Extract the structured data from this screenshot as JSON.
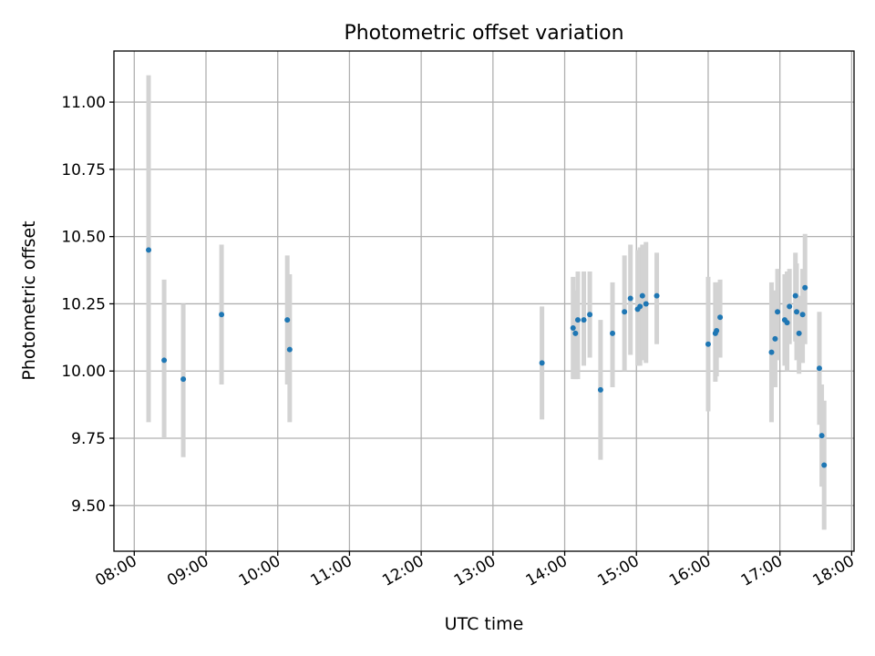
{
  "chart_data": {
    "type": "scatter",
    "title": "Photometric offset variation",
    "xlabel": "UTC time",
    "ylabel": "Photometric offset",
    "x_tick_labels": [
      "08:00",
      "09:00",
      "10:00",
      "11:00",
      "12:00",
      "13:00",
      "14:00",
      "15:00",
      "16:00",
      "17:00",
      "18:00"
    ],
    "y_tick_labels": [
      "9.50",
      "9.75",
      "10.00",
      "10.25",
      "10.50",
      "10.75",
      "11.00"
    ],
    "y_ticks": [
      9.5,
      9.75,
      10.0,
      10.25,
      10.5,
      10.75,
      11.0
    ],
    "x_range": [
      "07:43",
      "18:02"
    ],
    "ylim": [
      9.33,
      11.19
    ],
    "grid": true,
    "marker_color": "#1f77b4",
    "errorbar_color": "#d3d3d3",
    "points": [
      {
        "time": "08:12",
        "y": 10.45,
        "lo": 9.81,
        "hi": 11.1
      },
      {
        "time": "08:25",
        "y": 10.04,
        "lo": 9.75,
        "hi": 10.34
      },
      {
        "time": "08:41",
        "y": 9.97,
        "lo": 9.68,
        "hi": 10.25
      },
      {
        "time": "09:13",
        "y": 10.21,
        "lo": 9.95,
        "hi": 10.47
      },
      {
        "time": "10:08",
        "y": 10.19,
        "lo": 9.95,
        "hi": 10.43
      },
      {
        "time": "10:10",
        "y": 10.08,
        "lo": 9.81,
        "hi": 10.36
      },
      {
        "time": "13:41",
        "y": 10.03,
        "lo": 9.82,
        "hi": 10.24
      },
      {
        "time": "14:07",
        "y": 10.16,
        "lo": 9.97,
        "hi": 10.35
      },
      {
        "time": "14:09",
        "y": 10.14,
        "lo": 9.97,
        "hi": 10.3
      },
      {
        "time": "14:11",
        "y": 10.19,
        "lo": 9.97,
        "hi": 10.37
      },
      {
        "time": "14:16",
        "y": 10.19,
        "lo": 10.02,
        "hi": 10.37
      },
      {
        "time": "14:21",
        "y": 10.21,
        "lo": 10.05,
        "hi": 10.37
      },
      {
        "time": "14:30",
        "y": 9.93,
        "lo": 9.67,
        "hi": 10.19
      },
      {
        "time": "14:40",
        "y": 10.14,
        "lo": 9.94,
        "hi": 10.33
      },
      {
        "time": "14:50",
        "y": 10.22,
        "lo": 10.0,
        "hi": 10.43
      },
      {
        "time": "14:55",
        "y": 10.27,
        "lo": 10.06,
        "hi": 10.47
      },
      {
        "time": "15:01",
        "y": 10.23,
        "lo": 10.02,
        "hi": 10.45
      },
      {
        "time": "15:03",
        "y": 10.24,
        "lo": 10.02,
        "hi": 10.46
      },
      {
        "time": "15:05",
        "y": 10.28,
        "lo": 10.04,
        "hi": 10.47
      },
      {
        "time": "15:08",
        "y": 10.25,
        "lo": 10.03,
        "hi": 10.48
      },
      {
        "time": "15:17",
        "y": 10.28,
        "lo": 10.1,
        "hi": 10.44
      },
      {
        "time": "16:00",
        "y": 10.1,
        "lo": 9.85,
        "hi": 10.35
      },
      {
        "time": "16:06",
        "y": 10.14,
        "lo": 9.96,
        "hi": 10.33
      },
      {
        "time": "16:07",
        "y": 10.15,
        "lo": 9.98,
        "hi": 10.33
      },
      {
        "time": "16:10",
        "y": 10.2,
        "lo": 10.05,
        "hi": 10.34
      },
      {
        "time": "16:53",
        "y": 10.07,
        "lo": 9.81,
        "hi": 10.33
      },
      {
        "time": "16:56",
        "y": 10.12,
        "lo": 9.94,
        "hi": 10.3
      },
      {
        "time": "16:58",
        "y": 10.22,
        "lo": 10.04,
        "hi": 10.38
      },
      {
        "time": "17:04",
        "y": 10.19,
        "lo": 10.02,
        "hi": 10.36
      },
      {
        "time": "17:06",
        "y": 10.18,
        "lo": 10.0,
        "hi": 10.37
      },
      {
        "time": "17:08",
        "y": 10.24,
        "lo": 10.1,
        "hi": 10.38
      },
      {
        "time": "17:13",
        "y": 10.28,
        "lo": 10.11,
        "hi": 10.44
      },
      {
        "time": "17:14",
        "y": 10.22,
        "lo": 10.04,
        "hi": 10.4
      },
      {
        "time": "17:16",
        "y": 10.14,
        "lo": 9.99,
        "hi": 10.28
      },
      {
        "time": "17:19",
        "y": 10.21,
        "lo": 10.03,
        "hi": 10.38
      },
      {
        "time": "17:21",
        "y": 10.31,
        "lo": 10.1,
        "hi": 10.51
      },
      {
        "time": "17:33",
        "y": 10.01,
        "lo": 9.8,
        "hi": 10.22
      },
      {
        "time": "17:35",
        "y": 9.76,
        "lo": 9.57,
        "hi": 9.95
      },
      {
        "time": "17:37",
        "y": 9.65,
        "lo": 9.41,
        "hi": 9.89
      }
    ]
  }
}
